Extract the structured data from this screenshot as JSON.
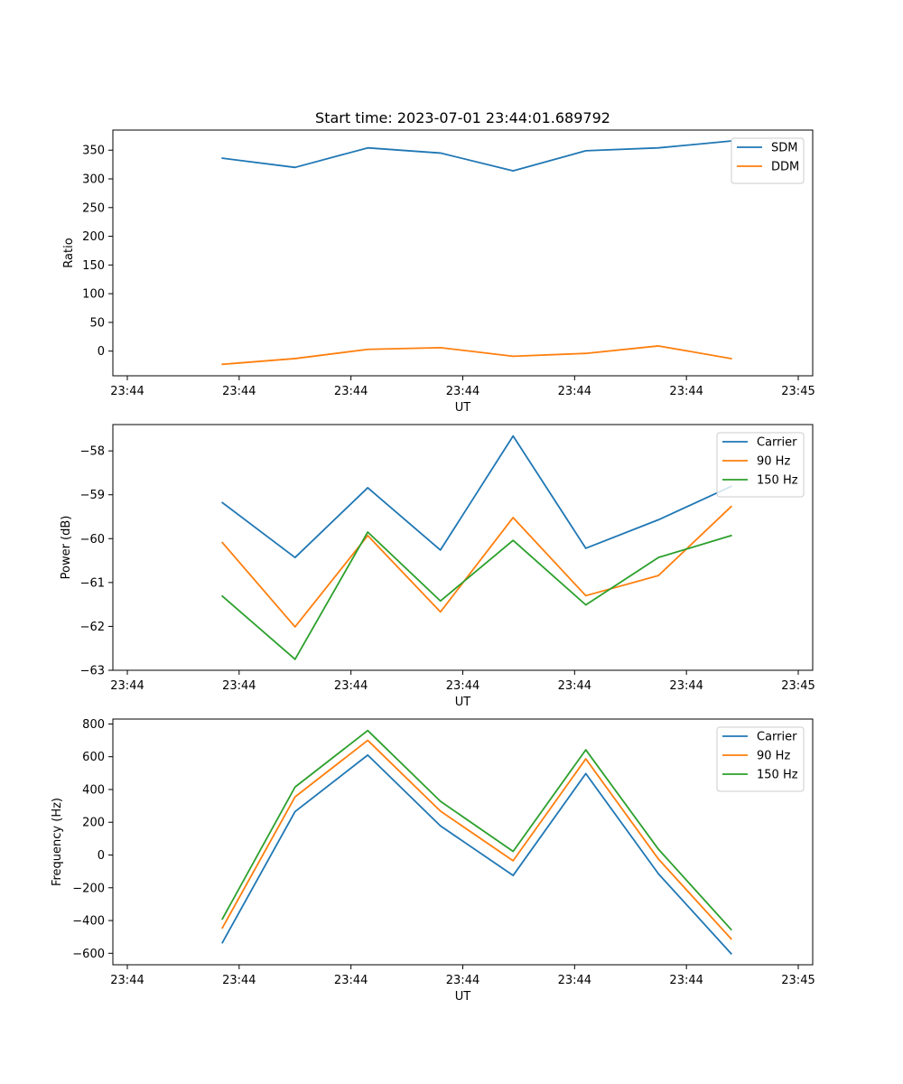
{
  "figure_title": "Start time: 2023-07-01 23:44:01.689792",
  "colors": {
    "blue": "#1f77b4",
    "orange": "#ff7f0e",
    "green": "#2ca02c"
  },
  "chart_data": [
    {
      "type": "line",
      "title": "Start time: 2023-07-01 23:44:01.689792",
      "xlabel": "UT",
      "ylabel": "Ratio",
      "x": [
        1.7,
        3.0,
        4.3,
        5.6,
        6.9,
        8.2,
        9.5,
        10.8
      ],
      "xlim": [
        0,
        12
      ],
      "x_ticks": [
        {
          "value": 0,
          "label": "23:44"
        },
        {
          "value": 2,
          "label": "23:44"
        },
        {
          "value": 4,
          "label": "23:44"
        },
        {
          "value": 6,
          "label": "23:44"
        },
        {
          "value": 8,
          "label": "23:44"
        },
        {
          "value": 10,
          "label": "23:44"
        },
        {
          "value": 12,
          "label": "23:45"
        }
      ],
      "ylim": [
        -43,
        385
      ],
      "y_ticks": [
        0,
        50,
        100,
        150,
        200,
        250,
        300,
        350
      ],
      "legend_position": "top-right",
      "series": [
        {
          "name": "SDM",
          "color": "#1f77b4",
          "values": [
            336,
            320,
            354,
            345,
            314,
            349,
            354,
            366
          ]
        },
        {
          "name": "DDM",
          "color": "#ff7f0e",
          "values": [
            -23,
            -13,
            3,
            6,
            -9,
            -4,
            9,
            -13
          ]
        }
      ]
    },
    {
      "type": "line",
      "title": "",
      "xlabel": "UT",
      "ylabel": "Power (dB)",
      "x": [
        1.7,
        3.0,
        4.3,
        5.6,
        6.9,
        8.2,
        9.5,
        10.8
      ],
      "xlim": [
        0,
        12
      ],
      "x_ticks": [
        {
          "value": 0,
          "label": "23:44"
        },
        {
          "value": 2,
          "label": "23:44"
        },
        {
          "value": 4,
          "label": "23:44"
        },
        {
          "value": 6,
          "label": "23:44"
        },
        {
          "value": 8,
          "label": "23:44"
        },
        {
          "value": 10,
          "label": "23:44"
        },
        {
          "value": 12,
          "label": "23:45"
        }
      ],
      "ylim": [
        -63.0,
        -57.4
      ],
      "y_ticks": [
        -63,
        -62,
        -61,
        -60,
        -59,
        -58
      ],
      "legend_position": "top-right",
      "series": [
        {
          "name": "Carrier",
          "color": "#1f77b4",
          "values": [
            -59.18,
            -60.43,
            -58.84,
            -60.26,
            -57.66,
            -60.22,
            -59.57,
            -58.81
          ]
        },
        {
          "name": "90 Hz",
          "color": "#ff7f0e",
          "values": [
            -60.09,
            -62.01,
            -59.93,
            -61.67,
            -59.52,
            -61.3,
            -60.84,
            -59.27
          ]
        },
        {
          "name": "150 Hz",
          "color": "#2ca02c",
          "values": [
            -61.31,
            -62.75,
            -59.85,
            -61.42,
            -60.04,
            -61.51,
            -60.43,
            -59.93
          ]
        }
      ]
    },
    {
      "type": "line",
      "title": "",
      "xlabel": "UT",
      "ylabel": "Frequency (Hz)",
      "x": [
        1.7,
        3.0,
        4.3,
        5.6,
        6.9,
        8.2,
        9.5,
        10.8
      ],
      "xlim": [
        0,
        12
      ],
      "x_ticks": [
        {
          "value": 0,
          "label": "23:44"
        },
        {
          "value": 2,
          "label": "23:44"
        },
        {
          "value": 4,
          "label": "23:44"
        },
        {
          "value": 6,
          "label": "23:44"
        },
        {
          "value": 8,
          "label": "23:44"
        },
        {
          "value": 10,
          "label": "23:44"
        },
        {
          "value": 12,
          "label": "23:45"
        }
      ],
      "ylim": [
        -670,
        830
      ],
      "y_ticks": [
        -600,
        -400,
        -200,
        0,
        200,
        400,
        600,
        800
      ],
      "legend_position": "top-right",
      "series": [
        {
          "name": "Carrier",
          "color": "#1f77b4",
          "values": [
            -535,
            265,
            610,
            178,
            -125,
            497,
            -115,
            -602
          ]
        },
        {
          "name": "90 Hz",
          "color": "#ff7f0e",
          "values": [
            -445,
            355,
            700,
            268,
            -35,
            587,
            -25,
            -512
          ]
        },
        {
          "name": "150 Hz",
          "color": "#2ca02c",
          "values": [
            -390,
            415,
            760,
            328,
            22,
            642,
            35,
            -455
          ]
        }
      ]
    }
  ]
}
